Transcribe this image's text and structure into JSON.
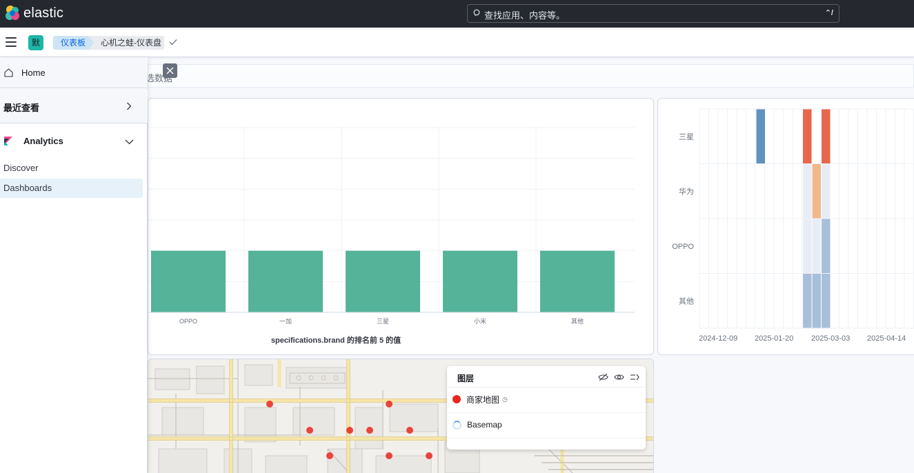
{
  "header": {
    "brand": "elastic",
    "search_placeholder": "查找应用、内容等。",
    "search_shortcut": "⌃/"
  },
  "subheader": {
    "space_badge": "默",
    "breadcrumbs": [
      "仪表板",
      "心机之蛙-仪表盘"
    ]
  },
  "filter_bar": {
    "text": "选数据"
  },
  "nav": {
    "home": "Home",
    "recent": "最近查看",
    "section": "Analytics",
    "links": [
      "Discover",
      "Dashboards"
    ]
  },
  "colors": {
    "bar": "#54b399",
    "heat_dark_blue": "#6092c0",
    "heat_red": "#e7664c",
    "heat_orange": "#f1b88a",
    "heat_light_blue": "#a8bfda",
    "heat_pale": "#e8ecf5",
    "map_point": "#e7281e"
  },
  "chart_data": [
    {
      "type": "bar",
      "categories": [
        "OPPO",
        "一加",
        "三星",
        "小米",
        "其他"
      ],
      "values": [
        1,
        1,
        1,
        1,
        1
      ],
      "xlabel": "specifications.brand 的排名前 5 的值",
      "ylabel": "",
      "ylim": [
        0,
        3
      ],
      "grid": true
    },
    {
      "type": "heatmap",
      "rows": [
        "三星",
        "华为",
        "OPPO",
        "其他"
      ],
      "x_ticks": [
        "2024-12-09",
        "2025-01-20",
        "2025-03-03",
        "2025-04-14"
      ],
      "grid": true
    }
  ],
  "map": {
    "layers_title": "图层",
    "layers": [
      {
        "name": "商家地图",
        "status": "clock-icon"
      },
      {
        "name": "Basemap",
        "status": "loading"
      }
    ]
  }
}
